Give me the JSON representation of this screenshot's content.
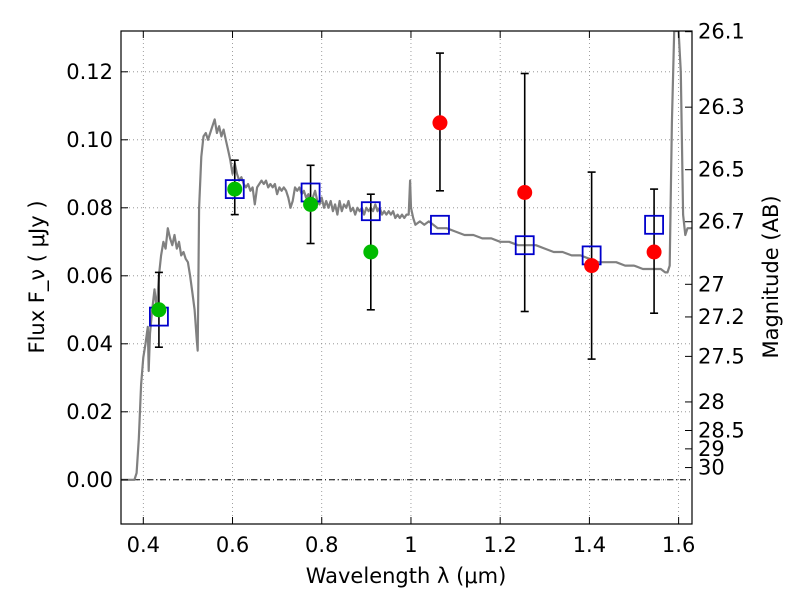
{
  "chart_data": {
    "type": "scatter",
    "title": "",
    "xlabel": "Wavelength  λ (μm)",
    "ylabel": "Flux  F_ν  ( μJy )",
    "ylabel_right": "Magnitude (AB)",
    "xlim": [
      0.35,
      1.63
    ],
    "ylim": [
      -0.013,
      0.132
    ],
    "grid": true,
    "legend": "none",
    "x_ticks": [
      0.4,
      0.6,
      0.8,
      1.0,
      1.2,
      1.4,
      1.6
    ],
    "x_tick_labels": [
      "0.4",
      "0.6",
      "0.8",
      "1",
      "1.2",
      "1.4",
      "1.6"
    ],
    "y_ticks": [
      0.0,
      0.02,
      0.04,
      0.06,
      0.08,
      0.1,
      0.12
    ],
    "y_tick_labels": [
      "0.00",
      "0.02",
      "0.04",
      "0.06",
      "0.08",
      "0.10",
      "0.12"
    ],
    "mag_ticks": [
      {
        "label": "26.1",
        "flux": 0.1318
      },
      {
        "label": "26.3",
        "flux": 0.1096
      },
      {
        "label": "26.5",
        "flux": 0.0912
      },
      {
        "label": "26.7",
        "flux": 0.0759
      },
      {
        "label": "27",
        "flux": 0.0575
      },
      {
        "label": "27.2",
        "flux": 0.0479
      },
      {
        "label": "27.5",
        "flux": 0.0363
      },
      {
        "label": "28",
        "flux": 0.0229
      },
      {
        "label": "28.5",
        "flux": 0.0145
      },
      {
        "label": "29",
        "flux": 0.0091
      },
      {
        "label": "30",
        "flux": 0.0036
      }
    ],
    "colors": {
      "model": "#808080",
      "detection": "#00bb00",
      "upper_limit": "#ff0000",
      "model_photometry": "#0000cc",
      "error_bar": "#000000",
      "grid": "#888888"
    },
    "series": [
      {
        "type": "line",
        "points": [
          [
            0.35,
            0.0
          ],
          [
            0.38,
            0.0
          ],
          [
            0.385,
            0.002
          ],
          [
            0.39,
            0.012
          ],
          [
            0.395,
            0.028
          ],
          [
            0.4,
            0.036
          ],
          [
            0.405,
            0.04
          ],
          [
            0.41,
            0.045
          ],
          [
            0.412,
            0.032
          ],
          [
            0.415,
            0.043
          ],
          [
            0.42,
            0.05
          ],
          [
            0.425,
            0.056
          ],
          [
            0.43,
            0.05
          ],
          [
            0.435,
            0.06
          ],
          [
            0.44,
            0.066
          ],
          [
            0.445,
            0.07
          ],
          [
            0.45,
            0.068
          ],
          [
            0.455,
            0.074
          ],
          [
            0.46,
            0.071
          ],
          [
            0.465,
            0.069
          ],
          [
            0.47,
            0.072
          ],
          [
            0.475,
            0.068
          ],
          [
            0.48,
            0.07
          ],
          [
            0.485,
            0.066
          ],
          [
            0.49,
            0.067
          ],
          [
            0.495,
            0.065
          ],
          [
            0.5,
            0.064
          ],
          [
            0.505,
            0.06
          ],
          [
            0.51,
            0.055
          ],
          [
            0.515,
            0.05
          ],
          [
            0.52,
            0.041
          ],
          [
            0.522,
            0.038
          ],
          [
            0.525,
            0.08
          ],
          [
            0.53,
            0.095
          ],
          [
            0.535,
            0.101
          ],
          [
            0.54,
            0.102
          ],
          [
            0.545,
            0.1
          ],
          [
            0.55,
            0.102
          ],
          [
            0.555,
            0.104
          ],
          [
            0.56,
            0.106
          ],
          [
            0.565,
            0.102
          ],
          [
            0.57,
            0.104
          ],
          [
            0.575,
            0.101
          ],
          [
            0.58,
            0.103
          ],
          [
            0.585,
            0.1
          ],
          [
            0.59,
            0.097
          ],
          [
            0.595,
            0.094
          ],
          [
            0.6,
            0.09
          ],
          [
            0.605,
            0.093
          ],
          [
            0.61,
            0.09
          ],
          [
            0.615,
            0.088
          ],
          [
            0.62,
            0.089
          ],
          [
            0.625,
            0.087
          ],
          [
            0.63,
            0.086
          ],
          [
            0.635,
            0.087
          ],
          [
            0.64,
            0.085
          ],
          [
            0.645,
            0.086
          ],
          [
            0.65,
            0.081
          ],
          [
            0.655,
            0.086
          ],
          [
            0.66,
            0.087
          ],
          [
            0.665,
            0.088
          ],
          [
            0.67,
            0.087
          ],
          [
            0.675,
            0.088
          ],
          [
            0.68,
            0.086
          ],
          [
            0.685,
            0.087
          ],
          [
            0.69,
            0.086
          ],
          [
            0.695,
            0.087
          ],
          [
            0.7,
            0.084
          ],
          [
            0.705,
            0.086
          ],
          [
            0.71,
            0.085
          ],
          [
            0.715,
            0.086
          ],
          [
            0.72,
            0.085
          ],
          [
            0.725,
            0.083
          ],
          [
            0.73,
            0.08
          ],
          [
            0.735,
            0.082
          ],
          [
            0.74,
            0.086
          ],
          [
            0.745,
            0.085
          ],
          [
            0.75,
            0.086
          ],
          [
            0.755,
            0.084
          ],
          [
            0.76,
            0.085
          ],
          [
            0.765,
            0.083
          ],
          [
            0.77,
            0.084
          ],
          [
            0.775,
            0.081
          ],
          [
            0.78,
            0.083
          ],
          [
            0.785,
            0.085
          ],
          [
            0.79,
            0.082
          ],
          [
            0.795,
            0.081
          ],
          [
            0.8,
            0.083
          ],
          [
            0.805,
            0.08
          ],
          [
            0.81,
            0.082
          ],
          [
            0.815,
            0.08
          ],
          [
            0.82,
            0.082
          ],
          [
            0.825,
            0.079
          ],
          [
            0.83,
            0.081
          ],
          [
            0.835,
            0.078
          ],
          [
            0.84,
            0.082
          ],
          [
            0.845,
            0.079
          ],
          [
            0.85,
            0.081
          ],
          [
            0.855,
            0.08
          ],
          [
            0.86,
            0.082
          ],
          [
            0.865,
            0.079
          ],
          [
            0.87,
            0.08
          ],
          [
            0.875,
            0.078
          ],
          [
            0.88,
            0.08
          ],
          [
            0.885,
            0.079
          ],
          [
            0.89,
            0.08
          ],
          [
            0.895,
            0.078
          ],
          [
            0.9,
            0.08
          ],
          [
            0.905,
            0.079
          ],
          [
            0.91,
            0.08
          ],
          [
            0.915,
            0.079
          ],
          [
            0.92,
            0.081
          ],
          [
            0.925,
            0.079
          ],
          [
            0.93,
            0.08
          ],
          [
            0.935,
            0.078
          ],
          [
            0.94,
            0.079
          ],
          [
            0.945,
            0.078
          ],
          [
            0.95,
            0.079
          ],
          [
            0.955,
            0.078
          ],
          [
            0.96,
            0.079
          ],
          [
            0.965,
            0.077
          ],
          [
            0.97,
            0.078
          ],
          [
            0.975,
            0.077
          ],
          [
            0.98,
            0.078
          ],
          [
            0.985,
            0.077
          ],
          [
            0.99,
            0.078
          ],
          [
            0.995,
            0.078
          ],
          [
            0.998,
            0.088
          ],
          [
            1.0,
            0.08
          ],
          [
            1.005,
            0.077
          ],
          [
            1.01,
            0.075
          ],
          [
            1.02,
            0.076
          ],
          [
            1.03,
            0.075
          ],
          [
            1.04,
            0.076
          ],
          [
            1.05,
            0.075
          ],
          [
            1.06,
            0.074
          ],
          [
            1.08,
            0.074
          ],
          [
            1.1,
            0.073
          ],
          [
            1.12,
            0.072
          ],
          [
            1.14,
            0.072
          ],
          [
            1.16,
            0.071
          ],
          [
            1.18,
            0.071
          ],
          [
            1.2,
            0.07
          ],
          [
            1.22,
            0.07
          ],
          [
            1.24,
            0.069
          ],
          [
            1.26,
            0.069
          ],
          [
            1.28,
            0.069
          ],
          [
            1.3,
            0.068
          ],
          [
            1.32,
            0.067
          ],
          [
            1.34,
            0.067
          ],
          [
            1.36,
            0.066
          ],
          [
            1.38,
            0.066
          ],
          [
            1.4,
            0.065
          ],
          [
            1.42,
            0.064
          ],
          [
            1.44,
            0.064
          ],
          [
            1.46,
            0.064
          ],
          [
            1.48,
            0.063
          ],
          [
            1.5,
            0.063
          ],
          [
            1.52,
            0.062
          ],
          [
            1.54,
            0.062
          ],
          [
            1.56,
            0.062
          ],
          [
            1.57,
            0.061
          ],
          [
            1.575,
            0.061
          ],
          [
            1.58,
            0.063
          ],
          [
            1.585,
            0.105
          ],
          [
            1.59,
            0.132
          ],
          [
            1.595,
            0.132
          ],
          [
            1.6,
            0.132
          ],
          [
            1.605,
            0.12
          ],
          [
            1.61,
            0.078
          ],
          [
            1.615,
            0.072
          ],
          [
            1.62,
            0.074
          ],
          [
            1.63,
            0.074
          ]
        ]
      },
      {
        "type": "scatter",
        "points": [
          {
            "x": 0.435,
            "y": 0.05,
            "yerr_low": 0.039,
            "yerr_high": 0.061
          },
          {
            "x": 0.605,
            "y": 0.0855,
            "yerr_low": 0.078,
            "yerr_high": 0.094
          },
          {
            "x": 0.775,
            "y": 0.081,
            "yerr_low": 0.0695,
            "yerr_high": 0.0925
          },
          {
            "x": 0.91,
            "y": 0.067,
            "yerr_low": 0.05,
            "yerr_high": 0.084
          }
        ]
      },
      {
        "type": "scatter",
        "points": [
          {
            "x": 1.065,
            "y": 0.105,
            "yerr_low": 0.085,
            "yerr_high": 0.1255
          },
          {
            "x": 1.255,
            "y": 0.0845,
            "yerr_low": 0.0495,
            "yerr_high": 0.1195
          },
          {
            "x": 1.405,
            "y": 0.063,
            "yerr_low": 0.0355,
            "yerr_high": 0.0905
          },
          {
            "x": 1.545,
            "y": 0.067,
            "yerr_low": 0.049,
            "yerr_high": 0.0855
          }
        ]
      },
      {
        "type": "scatter",
        "points": [
          {
            "x": 0.435,
            "y": 0.048
          },
          {
            "x": 0.605,
            "y": 0.0855
          },
          {
            "x": 0.775,
            "y": 0.0845
          },
          {
            "x": 0.91,
            "y": 0.079
          },
          {
            "x": 1.065,
            "y": 0.075
          },
          {
            "x": 1.255,
            "y": 0.069
          },
          {
            "x": 1.405,
            "y": 0.066
          },
          {
            "x": 1.545,
            "y": 0.075
          }
        ]
      }
    ]
  }
}
